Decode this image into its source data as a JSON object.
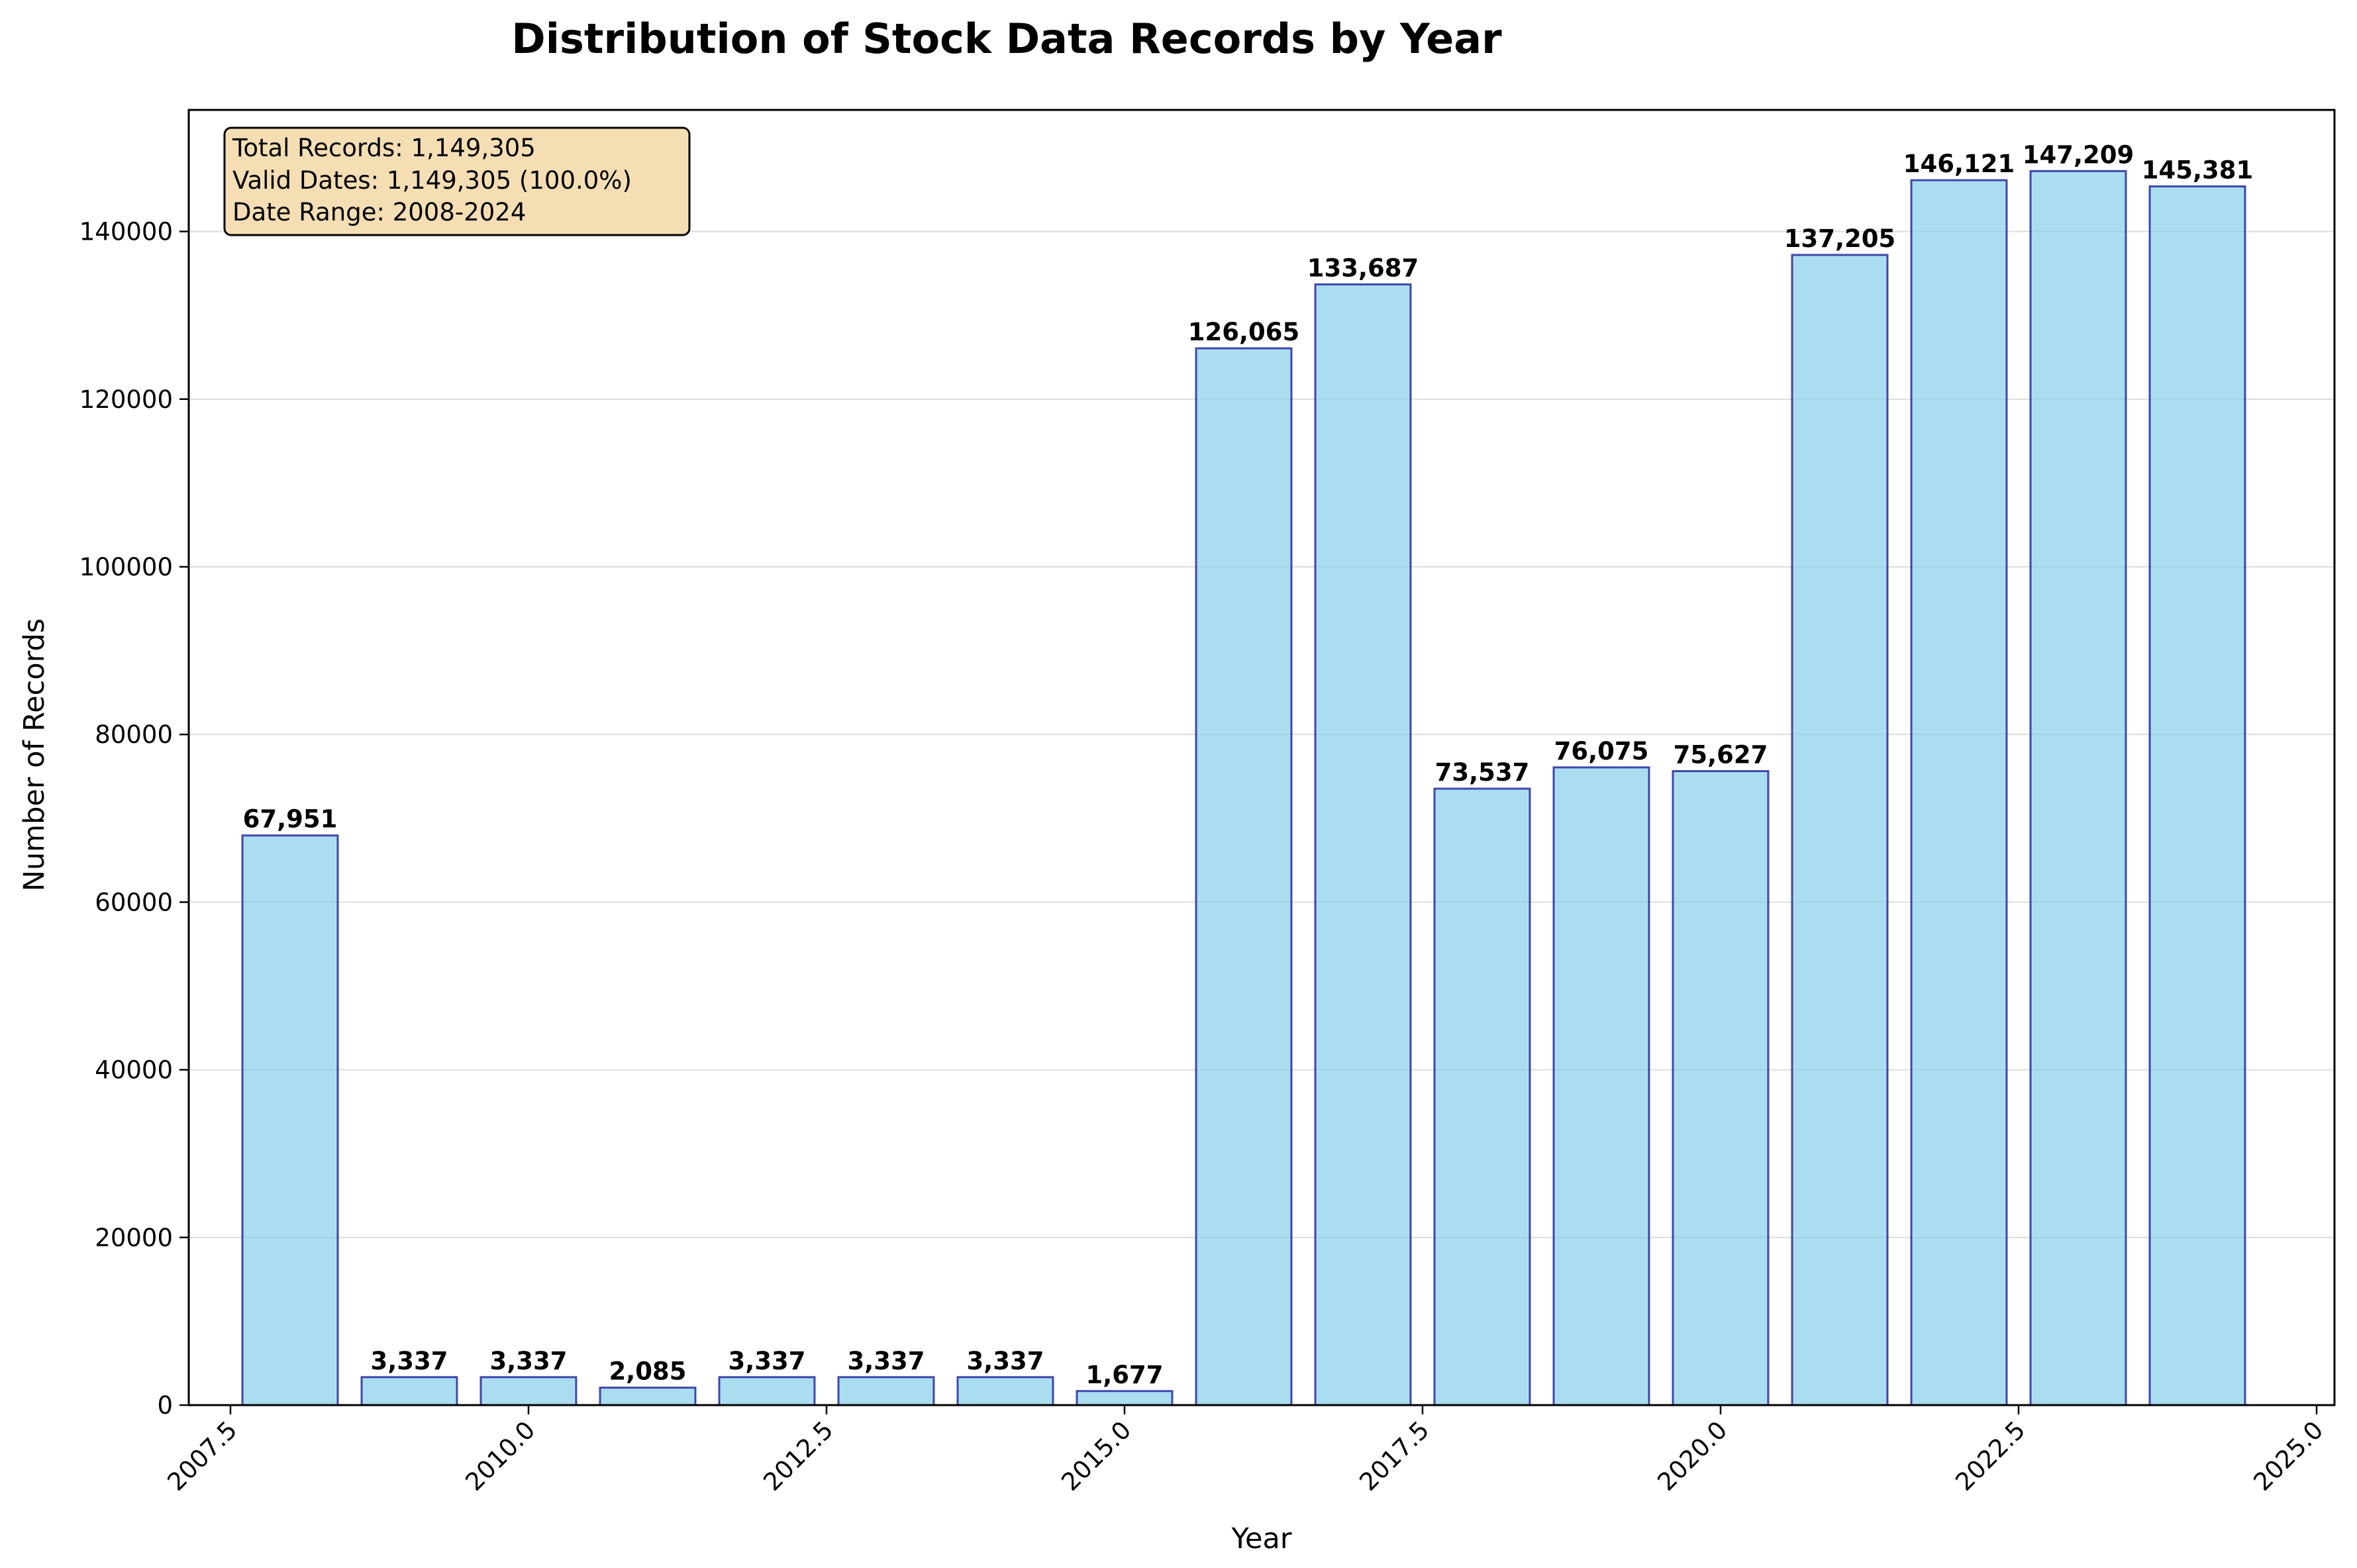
{
  "chart_data": {
    "type": "bar",
    "title": "Distribution of Stock Data Records by Year",
    "xlabel": "Year",
    "ylabel": "Number of Records",
    "x": [
      2008,
      2009,
      2010,
      2011,
      2012,
      2013,
      2014,
      2015,
      2016,
      2017,
      2018,
      2019,
      2020,
      2021,
      2022,
      2023,
      2024
    ],
    "values": [
      67951,
      3337,
      3337,
      2085,
      3337,
      3337,
      3337,
      1677,
      126065,
      133687,
      73537,
      76075,
      75627,
      137205,
      146121,
      147209,
      145381
    ],
    "data_labels": [
      "67,951",
      "3,337",
      "3,337",
      "2,085",
      "3,337",
      "3,337",
      "3,337",
      "1,677",
      "126,065",
      "133,687",
      "73,537",
      "76,075",
      "75,627",
      "137,205",
      "146,121",
      "147,209",
      "145,381"
    ],
    "xlim": [
      2007.15,
      2025.15
    ],
    "ylim": [
      0,
      154500
    ],
    "xticks": [
      2007.5,
      2010.0,
      2012.5,
      2015.0,
      2017.5,
      2020.0,
      2022.5,
      2025.0
    ],
    "xtick_labels": [
      "2007.5",
      "2010.0",
      "2012.5",
      "2015.0",
      "2017.5",
      "2020.0",
      "2022.5",
      "2025.0"
    ],
    "yticks": [
      0,
      20000,
      40000,
      60000,
      80000,
      100000,
      120000,
      140000
    ],
    "ytick_labels": [
      "0",
      "20000",
      "40000",
      "60000",
      "80000",
      "100000",
      "120000",
      "140000"
    ],
    "grid": "horizontal",
    "bar_color": "#87CEEB",
    "bar_edge_color": "#00008B",
    "info_box": {
      "lines": [
        "Total Records: 1,149,305",
        "Valid Dates: 1,149,305 (100.0%)",
        "Date Range: 2008-2024"
      ],
      "background": "#F5DEB3",
      "placement": "top-left"
    }
  }
}
